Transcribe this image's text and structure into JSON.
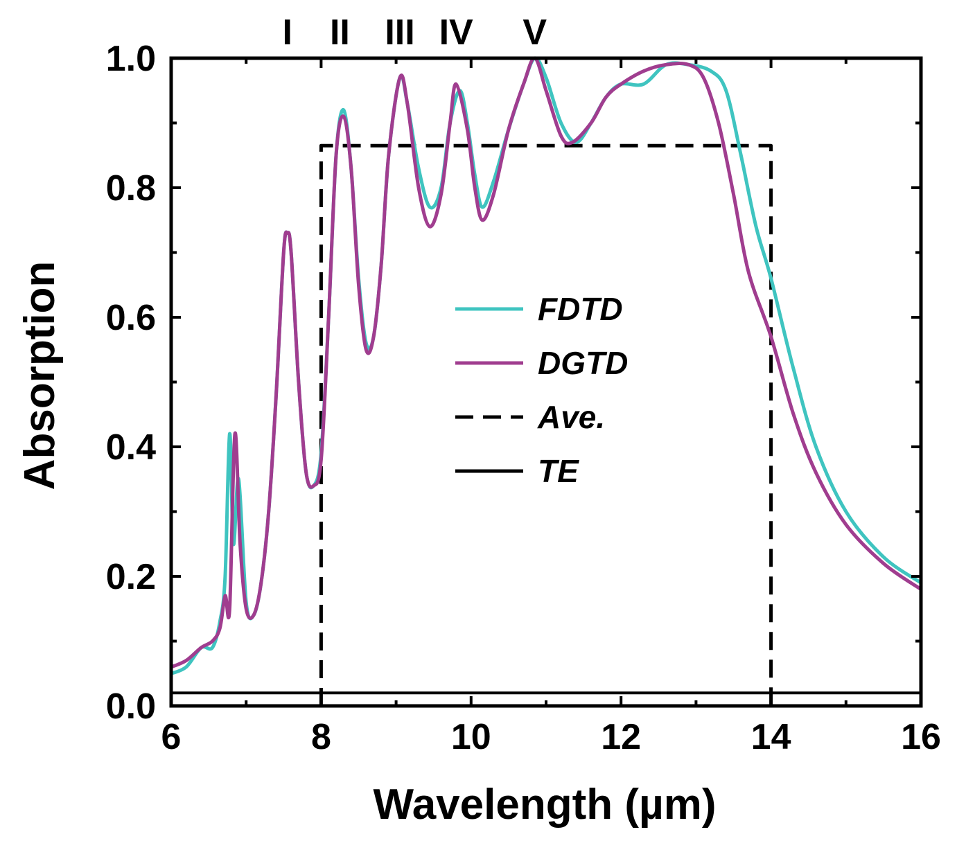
{
  "chart_data": {
    "type": "line",
    "title": "",
    "xlabel": "Wavelength (µm)",
    "ylabel": "Absorption",
    "xlim": [
      6,
      16
    ],
    "ylim": [
      0,
      1.0
    ],
    "x_ticks": [
      6,
      8,
      10,
      12,
      14,
      16
    ],
    "x_tick_labels": [
      "6",
      "8",
      "10",
      "12",
      "14",
      "16"
    ],
    "y_ticks": [
      0.0,
      0.2,
      0.4,
      0.6,
      0.8,
      1.0
    ],
    "y_tick_labels": [
      "0.0",
      "0.2",
      "0.4",
      "0.6",
      "0.8",
      "1.0"
    ],
    "grid": false,
    "legend_position": "center",
    "peak_labels": [
      {
        "text": "I",
        "x": 7.55
      },
      {
        "text": "II",
        "x": 8.25
      },
      {
        "text": "III",
        "x": 9.05
      },
      {
        "text": "IV",
        "x": 9.8
      },
      {
        "text": "V",
        "x": 10.85
      }
    ],
    "series": [
      {
        "name": "FDTD",
        "color": "#3fc4c0",
        "style": "solid",
        "points": [
          [
            6.0,
            0.05
          ],
          [
            6.2,
            0.06
          ],
          [
            6.4,
            0.09
          ],
          [
            6.55,
            0.09
          ],
          [
            6.65,
            0.13
          ],
          [
            6.72,
            0.2
          ],
          [
            6.78,
            0.42
          ],
          [
            6.83,
            0.25
          ],
          [
            6.9,
            0.35
          ],
          [
            7.0,
            0.16
          ],
          [
            7.1,
            0.14
          ],
          [
            7.2,
            0.19
          ],
          [
            7.3,
            0.3
          ],
          [
            7.4,
            0.48
          ],
          [
            7.5,
            0.7
          ],
          [
            7.55,
            0.73
          ],
          [
            7.6,
            0.7
          ],
          [
            7.7,
            0.5
          ],
          [
            7.8,
            0.36
          ],
          [
            7.9,
            0.34
          ],
          [
            8.0,
            0.39
          ],
          [
            8.1,
            0.6
          ],
          [
            8.2,
            0.85
          ],
          [
            8.3,
            0.92
          ],
          [
            8.4,
            0.83
          ],
          [
            8.5,
            0.66
          ],
          [
            8.6,
            0.56
          ],
          [
            8.7,
            0.57
          ],
          [
            8.8,
            0.68
          ],
          [
            8.9,
            0.85
          ],
          [
            9.05,
            0.97
          ],
          [
            9.15,
            0.93
          ],
          [
            9.3,
            0.83
          ],
          [
            9.45,
            0.77
          ],
          [
            9.6,
            0.8
          ],
          [
            9.72,
            0.9
          ],
          [
            9.85,
            0.95
          ],
          [
            9.95,
            0.9
          ],
          [
            10.05,
            0.82
          ],
          [
            10.15,
            0.77
          ],
          [
            10.3,
            0.81
          ],
          [
            10.5,
            0.89
          ],
          [
            10.7,
            0.96
          ],
          [
            10.85,
            1.0
          ],
          [
            11.0,
            0.97
          ],
          [
            11.2,
            0.9
          ],
          [
            11.4,
            0.87
          ],
          [
            11.6,
            0.9
          ],
          [
            11.8,
            0.94
          ],
          [
            12.0,
            0.96
          ],
          [
            12.3,
            0.96
          ],
          [
            12.6,
            0.99
          ],
          [
            12.9,
            0.99
          ],
          [
            13.2,
            0.98
          ],
          [
            13.4,
            0.95
          ],
          [
            13.6,
            0.85
          ],
          [
            13.8,
            0.74
          ],
          [
            14.0,
            0.66
          ],
          [
            14.3,
            0.52
          ],
          [
            14.6,
            0.4
          ],
          [
            15.0,
            0.3
          ],
          [
            15.5,
            0.23
          ],
          [
            16.0,
            0.19
          ]
        ]
      },
      {
        "name": "DGTD",
        "color": "#a03d8f",
        "style": "solid",
        "points": [
          [
            6.0,
            0.06
          ],
          [
            6.2,
            0.07
          ],
          [
            6.4,
            0.09
          ],
          [
            6.55,
            0.1
          ],
          [
            6.65,
            0.12
          ],
          [
            6.72,
            0.17
          ],
          [
            6.78,
            0.15
          ],
          [
            6.85,
            0.42
          ],
          [
            6.92,
            0.25
          ],
          [
            7.0,
            0.15
          ],
          [
            7.1,
            0.14
          ],
          [
            7.2,
            0.19
          ],
          [
            7.3,
            0.3
          ],
          [
            7.4,
            0.48
          ],
          [
            7.5,
            0.7
          ],
          [
            7.55,
            0.73
          ],
          [
            7.6,
            0.7
          ],
          [
            7.7,
            0.5
          ],
          [
            7.8,
            0.36
          ],
          [
            7.9,
            0.34
          ],
          [
            8.0,
            0.38
          ],
          [
            8.1,
            0.6
          ],
          [
            8.2,
            0.85
          ],
          [
            8.3,
            0.91
          ],
          [
            8.4,
            0.83
          ],
          [
            8.5,
            0.65
          ],
          [
            8.6,
            0.55
          ],
          [
            8.7,
            0.57
          ],
          [
            8.8,
            0.68
          ],
          [
            8.9,
            0.85
          ],
          [
            9.05,
            0.97
          ],
          [
            9.15,
            0.93
          ],
          [
            9.3,
            0.8
          ],
          [
            9.45,
            0.74
          ],
          [
            9.6,
            0.79
          ],
          [
            9.72,
            0.9
          ],
          [
            9.8,
            0.96
          ],
          [
            9.95,
            0.89
          ],
          [
            10.05,
            0.8
          ],
          [
            10.15,
            0.75
          ],
          [
            10.3,
            0.79
          ],
          [
            10.5,
            0.89
          ],
          [
            10.7,
            0.96
          ],
          [
            10.85,
            1.0
          ],
          [
            11.0,
            0.95
          ],
          [
            11.2,
            0.88
          ],
          [
            11.35,
            0.87
          ],
          [
            11.6,
            0.9
          ],
          [
            11.8,
            0.94
          ],
          [
            12.0,
            0.96
          ],
          [
            12.3,
            0.98
          ],
          [
            12.6,
            0.99
          ],
          [
            12.9,
            0.99
          ],
          [
            13.1,
            0.97
          ],
          [
            13.3,
            0.9
          ],
          [
            13.5,
            0.79
          ],
          [
            13.7,
            0.67
          ],
          [
            14.0,
            0.57
          ],
          [
            14.3,
            0.45
          ],
          [
            14.6,
            0.36
          ],
          [
            15.0,
            0.28
          ],
          [
            15.5,
            0.22
          ],
          [
            16.0,
            0.18
          ]
        ]
      },
      {
        "name": "Ave.",
        "color": "#000000",
        "style": "dashed",
        "points": [
          [
            8.0,
            0.0
          ],
          [
            8.0,
            0.865
          ],
          [
            14.0,
            0.865
          ],
          [
            14.0,
            0.0
          ]
        ]
      },
      {
        "name": "TE",
        "color": "#000000",
        "style": "solid",
        "points": [
          [
            6.0,
            0.02
          ],
          [
            16.0,
            0.02
          ]
        ]
      }
    ]
  }
}
